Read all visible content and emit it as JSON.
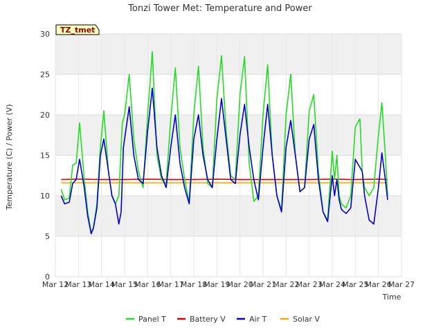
{
  "chart_data": {
    "type": "line",
    "title": "Tonzi Tower Met: Temperature and Power",
    "xlabel": "Time",
    "ylabel": "Temperature (C) / Power (V)",
    "badge": "TZ_tmet",
    "ylim": [
      0,
      30
    ],
    "yticks": [
      0,
      5,
      10,
      15,
      20,
      25,
      30
    ],
    "xlim": [
      12,
      27
    ],
    "xticks": [
      12,
      13,
      14,
      15,
      16,
      17,
      18,
      19,
      20,
      21,
      22,
      23,
      24,
      25,
      26,
      27
    ],
    "xtick_labels": [
      "Mar 12",
      "Mar 13",
      "Mar 14",
      "Mar 15",
      "Mar 16",
      "Mar 17",
      "Mar 18",
      "Mar 19",
      "Mar 20",
      "Mar 21",
      "Mar 22",
      "Mar 23",
      "Mar 24",
      "Mar 25",
      "Mar 26",
      "Mar 27"
    ],
    "x_unit": "day of March",
    "series": [
      {
        "name": "Panel T",
        "color": "#22dd22",
        "x": [
          12.25,
          12.4,
          12.6,
          12.75,
          12.9,
          13.05,
          13.25,
          13.4,
          13.55,
          13.65,
          13.8,
          13.95,
          14.1,
          14.3,
          14.45,
          14.6,
          14.75,
          14.9,
          15.0,
          15.2,
          15.4,
          15.6,
          15.8,
          16.0,
          16.2,
          16.4,
          16.6,
          16.8,
          17.0,
          17.2,
          17.4,
          17.6,
          17.8,
          18.0,
          18.2,
          18.4,
          18.6,
          18.8,
          19.0,
          19.2,
          19.4,
          19.6,
          19.8,
          20.0,
          20.2,
          20.4,
          20.6,
          20.8,
          21.0,
          21.2,
          21.4,
          21.6,
          21.8,
          22.0,
          22.2,
          22.4,
          22.6,
          22.8,
          23.0,
          23.2,
          23.4,
          23.6,
          23.8,
          24.0,
          24.1,
          24.2,
          24.3,
          24.4,
          24.6,
          24.8,
          25.0,
          25.2,
          25.3,
          25.4,
          25.6,
          25.8,
          26.0,
          26.15,
          26.3,
          26.4
        ],
        "y": [
          10.8,
          9.5,
          9.7,
          13.8,
          14.0,
          19.0,
          12.0,
          8.0,
          5.5,
          6.0,
          9.0,
          16.0,
          20.5,
          13.0,
          10.0,
          9.0,
          10.0,
          19.0,
          20.0,
          25.0,
          17.0,
          13.0,
          11.0,
          20.0,
          27.8,
          15.0,
          12.0,
          11.5,
          19.5,
          25.8,
          16.0,
          12.0,
          9.2,
          20.0,
          26.0,
          16.0,
          11.5,
          11.0,
          22.0,
          27.3,
          18.0,
          12.5,
          12.0,
          22.5,
          27.2,
          14.0,
          9.3,
          10.0,
          20.0,
          26.2,
          15.0,
          10.0,
          8.2,
          20.0,
          25.0,
          15.0,
          10.5,
          11.0,
          20.5,
          22.5,
          13.0,
          8.0,
          7.0,
          15.5,
          12.0,
          15.0,
          10.0,
          9.0,
          8.5,
          10.0,
          18.5,
          19.5,
          13.0,
          11.0,
          10.0,
          11.0,
          17.5,
          21.5,
          15.0,
          10.0
        ]
      },
      {
        "name": "Battery V",
        "color": "#cc0000",
        "x": [
          12.25,
          13.0,
          14.0,
          15.0,
          16.0,
          17.0,
          18.0,
          19.0,
          20.0,
          21.0,
          22.0,
          23.0,
          24.0,
          25.0,
          26.0,
          26.4
        ],
        "y": [
          12.0,
          12.05,
          12.0,
          12.0,
          12.05,
          12.0,
          12.0,
          12.05,
          12.0,
          12.0,
          12.0,
          12.0,
          12.05,
          12.0,
          12.05,
          12.0
        ]
      },
      {
        "name": "Air T",
        "color": "#0000cc",
        "x": [
          12.25,
          12.4,
          12.6,
          12.75,
          12.9,
          13.05,
          13.25,
          13.4,
          13.55,
          13.65,
          13.8,
          13.95,
          14.1,
          14.3,
          14.45,
          14.6,
          14.75,
          14.85,
          14.95,
          15.2,
          15.4,
          15.6,
          15.8,
          16.0,
          16.2,
          16.4,
          16.6,
          16.8,
          17.0,
          17.2,
          17.4,
          17.6,
          17.8,
          18.0,
          18.2,
          18.4,
          18.6,
          18.8,
          19.0,
          19.2,
          19.4,
          19.6,
          19.8,
          20.0,
          20.2,
          20.4,
          20.6,
          20.8,
          21.0,
          21.2,
          21.4,
          21.6,
          21.8,
          22.0,
          22.2,
          22.4,
          22.6,
          22.8,
          23.0,
          23.2,
          23.4,
          23.6,
          23.8,
          24.0,
          24.1,
          24.2,
          24.3,
          24.4,
          24.6,
          24.8,
          25.0,
          25.2,
          25.3,
          25.4,
          25.6,
          25.8,
          26.0,
          26.15,
          26.3,
          26.4
        ],
        "y": [
          10.0,
          9.0,
          9.2,
          11.5,
          12.0,
          14.5,
          11.0,
          7.5,
          5.3,
          6.0,
          8.5,
          15.0,
          17.0,
          13.0,
          10.0,
          9.0,
          6.5,
          8.0,
          16.0,
          21.0,
          15.0,
          12.0,
          11.5,
          18.0,
          23.3,
          16.0,
          12.5,
          11.0,
          16.0,
          20.0,
          14.0,
          11.0,
          9.0,
          17.0,
          20.0,
          15.0,
          12.0,
          11.0,
          17.0,
          22.0,
          17.0,
          12.0,
          11.5,
          17.5,
          21.3,
          16.0,
          12.0,
          9.5,
          16.0,
          21.3,
          15.0,
          10.0,
          8.0,
          16.0,
          19.3,
          15.0,
          10.5,
          11.0,
          17.0,
          18.8,
          12.0,
          8.0,
          6.8,
          12.5,
          10.0,
          12.0,
          9.5,
          8.3,
          7.8,
          8.5,
          14.5,
          13.5,
          13.0,
          10.0,
          7.0,
          6.5,
          11.0,
          15.3,
          12.0,
          9.5
        ]
      },
      {
        "name": "Solar V",
        "color": "#ffa500",
        "x": [
          12.25,
          14.0,
          16.0,
          18.0,
          20.0,
          22.0,
          24.0,
          26.0,
          26.4
        ],
        "y": [
          11.6,
          11.6,
          11.6,
          11.6,
          11.6,
          11.6,
          11.6,
          11.6,
          11.6
        ]
      }
    ]
  }
}
